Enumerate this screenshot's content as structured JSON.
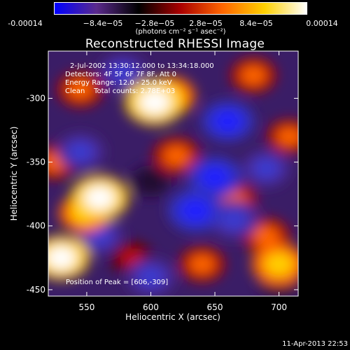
{
  "colorbar": {
    "ticks": [
      "-0.00014",
      "−8.4e−05",
      "−2.8e−05",
      "2.8e−05",
      "8.4e−05",
      "0.00014"
    ],
    "units_line": "(photons cm⁻² s⁻¹ asec⁻²)",
    "range": [
      -0.00014,
      0.00014
    ],
    "colormap": [
      "#0000ff",
      "#5a2a8c",
      "#000000",
      "#aa0000",
      "#ff6600",
      "#ffd000",
      "#ffffff"
    ]
  },
  "chart_data": {
    "type": "heatmap",
    "title": "Reconstructed RHESSI Image",
    "xlabel": "Heliocentric X (arcsec)",
    "ylabel": "Heliocentric Y (arcsec)",
    "xlim": [
      520,
      715
    ],
    "ylim": [
      -455,
      -263
    ],
    "xticks": [
      "550",
      "600",
      "650",
      "700"
    ],
    "yticks": [
      "-300",
      "-350",
      "-400",
      "-450"
    ],
    "xtick_values": [
      550,
      600,
      650,
      700
    ],
    "ytick_values": [
      -300,
      -350,
      -400,
      -450
    ],
    "annotations": [
      "2-Jul-2002 13:30:12.000 to 13:34:18.000",
      "Detectors: 4F 5F 6F 7F 8F, Att 0",
      "Energy Range: 12.0 - 25.0 keV",
      "Clean    Total counts: 2.78E+03"
    ],
    "peak_label": "Position of Peak = [606,-309]",
    "peak": [
      606,
      -309
    ],
    "blobs": [
      {
        "x": 603,
        "y": -303,
        "v": 0.9
      },
      {
        "x": 615,
        "y": -298,
        "v": 0.6
      },
      {
        "x": 560,
        "y": -378,
        "v": 0.85
      },
      {
        "x": 548,
        "y": -390,
        "v": 0.6
      },
      {
        "x": 530,
        "y": -425,
        "v": 0.8
      },
      {
        "x": 700,
        "y": -430,
        "v": 0.75
      },
      {
        "x": 690,
        "y": -408,
        "v": 0.5
      },
      {
        "x": 680,
        "y": -282,
        "v": 0.45
      },
      {
        "x": 545,
        "y": -293,
        "v": 0.45
      },
      {
        "x": 620,
        "y": -345,
        "v": 0.5
      },
      {
        "x": 665,
        "y": -380,
        "v": 0.45
      },
      {
        "x": 640,
        "y": -430,
        "v": 0.45
      },
      {
        "x": 585,
        "y": -425,
        "v": 0.35
      },
      {
        "x": 525,
        "y": -350,
        "v": 0.4
      },
      {
        "x": 708,
        "y": -330,
        "v": 0.4
      },
      {
        "x": 660,
        "y": -318,
        "v": -0.7
      },
      {
        "x": 650,
        "y": -362,
        "v": -0.75
      },
      {
        "x": 635,
        "y": -388,
        "v": -0.8
      },
      {
        "x": 665,
        "y": -395,
        "v": -0.6
      },
      {
        "x": 545,
        "y": -342,
        "v": -0.5
      },
      {
        "x": 560,
        "y": -408,
        "v": -0.5
      },
      {
        "x": 600,
        "y": -440,
        "v": -0.55
      },
      {
        "x": 690,
        "y": -355,
        "v": -0.5
      },
      {
        "x": 578,
        "y": -280,
        "v": -0.5
      },
      {
        "x": 600,
        "y": -365,
        "v": -0.3
      },
      {
        "x": 700,
        "y": -445,
        "v": -0.3
      }
    ]
  },
  "footer": "11-Apr-2013 22:53"
}
